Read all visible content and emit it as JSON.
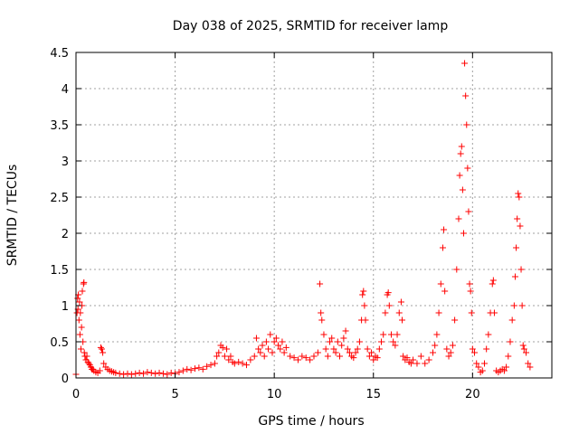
{
  "chart_data": {
    "type": "scatter",
    "title": "Day 038 of 2025, SRMTID for receiver lamp",
    "xlabel": "GPS time / hours",
    "ylabel": "SRMTID / TECUs",
    "xlim": [
      0,
      24
    ],
    "ylim": [
      0,
      4.5
    ],
    "xticks": [
      0,
      5,
      10,
      15,
      20
    ],
    "xtick_labels": [
      "0",
      "5",
      "10",
      "15",
      "20"
    ],
    "yticks": [
      0,
      0.5,
      1,
      1.5,
      2,
      2.5,
      3,
      3.5,
      4,
      4.5
    ],
    "ytick_labels": [
      "0",
      "0.5",
      "1",
      "1.5",
      "2",
      "2.5",
      "3",
      "3.5",
      "4",
      "4.5"
    ],
    "grid": true,
    "marker": "+",
    "color": "#ff0000",
    "series": [
      {
        "name": "SRMTID",
        "points": [
          [
            0.0,
            0.05
          ],
          [
            0.05,
            0.9
          ],
          [
            0.08,
            1.1
          ],
          [
            0.1,
            0.95
          ],
          [
            0.12,
            1.15
          ],
          [
            0.15,
            0.8
          ],
          [
            0.18,
            1.05
          ],
          [
            0.2,
            0.6
          ],
          [
            0.22,
            0.9
          ],
          [
            0.25,
            0.4
          ],
          [
            0.28,
            0.7
          ],
          [
            0.3,
            1.0
          ],
          [
            0.32,
            1.2
          ],
          [
            0.35,
            0.5
          ],
          [
            0.38,
            1.3
          ],
          [
            0.4,
            1.32
          ],
          [
            0.42,
            0.35
          ],
          [
            0.45,
            0.3
          ],
          [
            0.5,
            0.25
          ],
          [
            0.55,
            0.3
          ],
          [
            0.6,
            0.22
          ],
          [
            0.65,
            0.2
          ],
          [
            0.7,
            0.18
          ],
          [
            0.75,
            0.15
          ],
          [
            0.8,
            0.12
          ],
          [
            0.85,
            0.12
          ],
          [
            0.9,
            0.1
          ],
          [
            1.0,
            0.08
          ],
          [
            1.1,
            0.07
          ],
          [
            1.2,
            0.1
          ],
          [
            1.25,
            0.42
          ],
          [
            1.3,
            0.4
          ],
          [
            1.35,
            0.35
          ],
          [
            1.4,
            0.2
          ],
          [
            1.5,
            0.15
          ],
          [
            1.6,
            0.12
          ],
          [
            1.7,
            0.1
          ],
          [
            1.8,
            0.09
          ],
          [
            1.9,
            0.08
          ],
          [
            2.0,
            0.07
          ],
          [
            2.2,
            0.06
          ],
          [
            2.4,
            0.05
          ],
          [
            2.6,
            0.06
          ],
          [
            2.8,
            0.05
          ],
          [
            3.0,
            0.06
          ],
          [
            3.2,
            0.07
          ],
          [
            3.4,
            0.06
          ],
          [
            3.6,
            0.08
          ],
          [
            3.8,
            0.07
          ],
          [
            4.0,
            0.06
          ],
          [
            4.2,
            0.07
          ],
          [
            4.4,
            0.06
          ],
          [
            4.6,
            0.05
          ],
          [
            4.8,
            0.07
          ],
          [
            5.0,
            0.06
          ],
          [
            5.2,
            0.08
          ],
          [
            5.4,
            0.1
          ],
          [
            5.6,
            0.12
          ],
          [
            5.8,
            0.11
          ],
          [
            6.0,
            0.13
          ],
          [
            6.2,
            0.14
          ],
          [
            6.4,
            0.12
          ],
          [
            6.6,
            0.16
          ],
          [
            6.8,
            0.18
          ],
          [
            7.0,
            0.2
          ],
          [
            7.1,
            0.3
          ],
          [
            7.2,
            0.35
          ],
          [
            7.3,
            0.45
          ],
          [
            7.4,
            0.42
          ],
          [
            7.5,
            0.3
          ],
          [
            7.6,
            0.4
          ],
          [
            7.7,
            0.25
          ],
          [
            7.8,
            0.3
          ],
          [
            7.9,
            0.22
          ],
          [
            8.0,
            0.2
          ],
          [
            8.2,
            0.22
          ],
          [
            8.4,
            0.2
          ],
          [
            8.6,
            0.18
          ],
          [
            8.8,
            0.25
          ],
          [
            9.0,
            0.3
          ],
          [
            9.1,
            0.55
          ],
          [
            9.2,
            0.4
          ],
          [
            9.3,
            0.35
          ],
          [
            9.4,
            0.45
          ],
          [
            9.5,
            0.3
          ],
          [
            9.6,
            0.5
          ],
          [
            9.7,
            0.4
          ],
          [
            9.8,
            0.6
          ],
          [
            9.9,
            0.35
          ],
          [
            10.0,
            0.5
          ],
          [
            10.1,
            0.55
          ],
          [
            10.2,
            0.45
          ],
          [
            10.3,
            0.4
          ],
          [
            10.4,
            0.5
          ],
          [
            10.5,
            0.35
          ],
          [
            10.6,
            0.42
          ],
          [
            10.8,
            0.3
          ],
          [
            11.0,
            0.28
          ],
          [
            11.2,
            0.25
          ],
          [
            11.4,
            0.3
          ],
          [
            11.6,
            0.28
          ],
          [
            11.8,
            0.25
          ],
          [
            12.0,
            0.3
          ],
          [
            12.2,
            0.35
          ],
          [
            12.3,
            1.3
          ],
          [
            12.35,
            0.9
          ],
          [
            12.4,
            0.8
          ],
          [
            12.5,
            0.6
          ],
          [
            12.6,
            0.4
          ],
          [
            12.7,
            0.3
          ],
          [
            12.8,
            0.5
          ],
          [
            12.9,
            0.55
          ],
          [
            13.0,
            0.4
          ],
          [
            13.1,
            0.35
          ],
          [
            13.2,
            0.5
          ],
          [
            13.3,
            0.3
          ],
          [
            13.4,
            0.45
          ],
          [
            13.5,
            0.55
          ],
          [
            13.6,
            0.65
          ],
          [
            13.7,
            0.4
          ],
          [
            13.8,
            0.35
          ],
          [
            13.9,
            0.3
          ],
          [
            14.0,
            0.28
          ],
          [
            14.1,
            0.35
          ],
          [
            14.2,
            0.4
          ],
          [
            14.3,
            0.5
          ],
          [
            14.4,
            0.8
          ],
          [
            14.45,
            1.15
          ],
          [
            14.5,
            1.2
          ],
          [
            14.55,
            1.0
          ],
          [
            14.6,
            0.8
          ],
          [
            14.7,
            0.4
          ],
          [
            14.8,
            0.3
          ],
          [
            14.9,
            0.35
          ],
          [
            15.0,
            0.25
          ],
          [
            15.1,
            0.3
          ],
          [
            15.2,
            0.28
          ],
          [
            15.3,
            0.4
          ],
          [
            15.4,
            0.5
          ],
          [
            15.5,
            0.6
          ],
          [
            15.6,
            0.9
          ],
          [
            15.7,
            1.15
          ],
          [
            15.75,
            1.18
          ],
          [
            15.8,
            1.0
          ],
          [
            15.9,
            0.6
          ],
          [
            16.0,
            0.5
          ],
          [
            16.1,
            0.45
          ],
          [
            16.2,
            0.6
          ],
          [
            16.3,
            0.9
          ],
          [
            16.4,
            1.05
          ],
          [
            16.45,
            0.8
          ],
          [
            16.5,
            0.3
          ],
          [
            16.6,
            0.25
          ],
          [
            16.7,
            0.28
          ],
          [
            16.8,
            0.22
          ],
          [
            16.9,
            0.2
          ],
          [
            17.0,
            0.25
          ],
          [
            17.2,
            0.2
          ],
          [
            17.4,
            0.3
          ],
          [
            17.6,
            0.2
          ],
          [
            17.8,
            0.25
          ],
          [
            18.0,
            0.35
          ],
          [
            18.1,
            0.45
          ],
          [
            18.2,
            0.6
          ],
          [
            18.3,
            0.9
          ],
          [
            18.4,
            1.3
          ],
          [
            18.5,
            1.8
          ],
          [
            18.55,
            2.05
          ],
          [
            18.6,
            1.2
          ],
          [
            18.7,
            0.4
          ],
          [
            18.8,
            0.3
          ],
          [
            18.9,
            0.35
          ],
          [
            19.0,
            0.45
          ],
          [
            19.1,
            0.8
          ],
          [
            19.2,
            1.5
          ],
          [
            19.3,
            2.2
          ],
          [
            19.35,
            2.8
          ],
          [
            19.4,
            3.1
          ],
          [
            19.45,
            3.2
          ],
          [
            19.5,
            2.6
          ],
          [
            19.55,
            2.0
          ],
          [
            19.6,
            4.35
          ],
          [
            19.65,
            3.9
          ],
          [
            19.7,
            3.5
          ],
          [
            19.75,
            2.9
          ],
          [
            19.8,
            2.3
          ],
          [
            19.85,
            1.3
          ],
          [
            19.9,
            1.2
          ],
          [
            19.95,
            0.9
          ],
          [
            20.0,
            0.4
          ],
          [
            20.1,
            0.35
          ],
          [
            20.2,
            0.2
          ],
          [
            20.3,
            0.15
          ],
          [
            20.4,
            0.08
          ],
          [
            20.5,
            0.1
          ],
          [
            20.6,
            0.2
          ],
          [
            20.7,
            0.4
          ],
          [
            20.8,
            0.6
          ],
          [
            20.9,
            0.9
          ],
          [
            21.0,
            1.3
          ],
          [
            21.05,
            1.35
          ],
          [
            21.1,
            0.9
          ],
          [
            21.2,
            0.1
          ],
          [
            21.3,
            0.08
          ],
          [
            21.4,
            0.1
          ],
          [
            21.5,
            0.12
          ],
          [
            21.6,
            0.1
          ],
          [
            21.7,
            0.15
          ],
          [
            21.8,
            0.3
          ],
          [
            21.9,
            0.5
          ],
          [
            22.0,
            0.8
          ],
          [
            22.1,
            1.0
          ],
          [
            22.15,
            1.4
          ],
          [
            22.2,
            1.8
          ],
          [
            22.25,
            2.2
          ],
          [
            22.3,
            2.55
          ],
          [
            22.35,
            2.5
          ],
          [
            22.4,
            2.1
          ],
          [
            22.45,
            1.5
          ],
          [
            22.5,
            1.0
          ],
          [
            22.55,
            0.45
          ],
          [
            22.6,
            0.4
          ],
          [
            22.7,
            0.35
          ],
          [
            22.8,
            0.2
          ],
          [
            22.9,
            0.15
          ]
        ]
      }
    ]
  }
}
